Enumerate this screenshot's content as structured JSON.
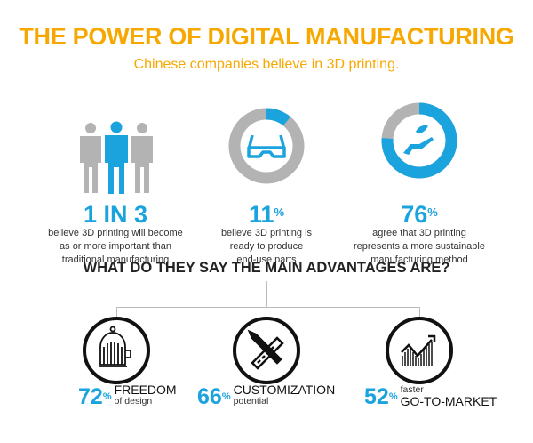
{
  "title": "THE POWER OF DIGITAL MANUFACTURING",
  "subtitle": "Chinese companies believe in 3D printing.",
  "colors": {
    "accent": "#f7a800",
    "blue": "#1aa3dd",
    "gray": "#b3b3b3"
  },
  "stats": [
    {
      "value": "1 IN 3",
      "suffix": "",
      "icon": "people-icon",
      "lines": [
        "believe 3D printing will become",
        "as or more important than",
        "traditional manufacturing"
      ]
    },
    {
      "value": "11",
      "suffix": "%",
      "percent": 11,
      "icon": "3d-glasses-icon",
      "lines": [
        "believe 3D printing is",
        "ready to produce",
        "end-use parts"
      ]
    },
    {
      "value": "76",
      "suffix": "%",
      "percent": 76,
      "icon": "hand-leaf-icon",
      "lines": [
        "agree that 3D printing",
        "represents a more sustainable",
        "manufacturing method"
      ]
    }
  ],
  "advantages_heading": "WHAT DO THEY SAY THE  MAIN ADVANTAGES ARE?",
  "advantages": [
    {
      "value": "72",
      "suffix": "%",
      "top": "FREEDOM",
      "bottom": "of design",
      "icon": "birdcage-icon"
    },
    {
      "value": "66",
      "suffix": "%",
      "top": "CUSTOMIZATION",
      "bottom": "potential",
      "icon": "pencil-ruler-icon"
    },
    {
      "value": "52",
      "suffix": "%",
      "top_small": "faster",
      "top": "GO-TO-MARKET",
      "icon": "growth-chart-icon"
    }
  ]
}
